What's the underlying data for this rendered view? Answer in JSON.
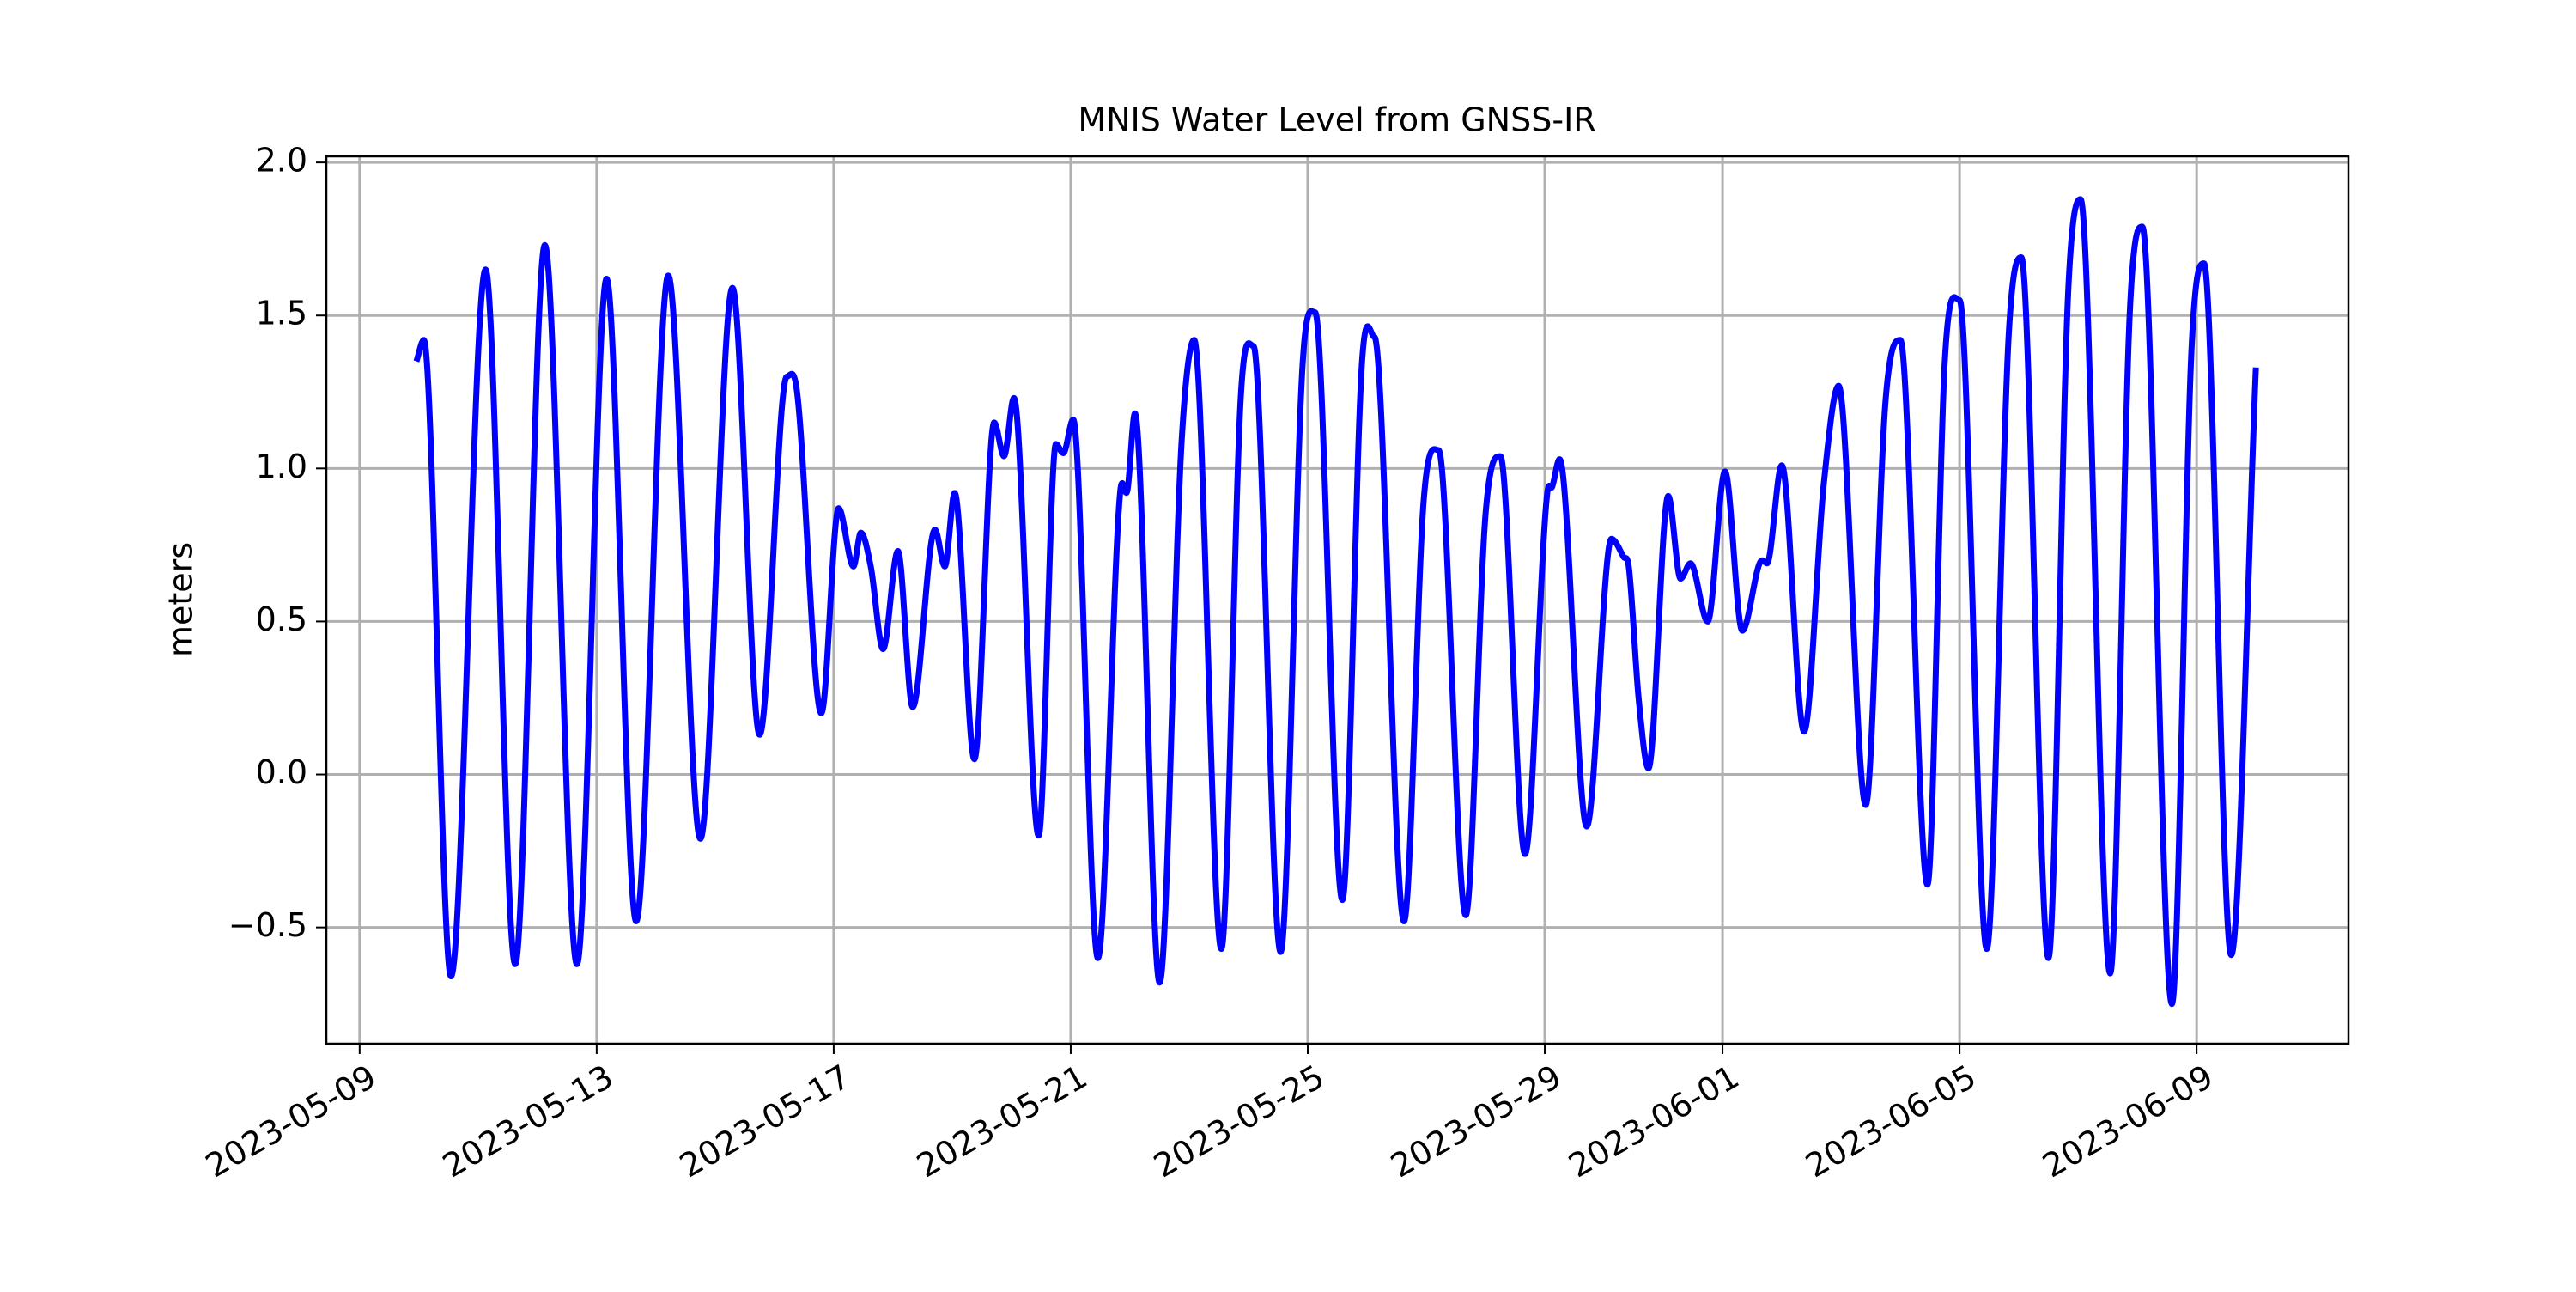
{
  "chart_data": {
    "type": "line",
    "title": "MNIS Water Level from GNSS-IR",
    "y_label": "meters",
    "grid": true,
    "xlim": [
      "2023-05-08T10:30",
      "2023-06-11T13:30"
    ],
    "xticks": [
      "2023-05-09",
      "2023-05-13",
      "2023-05-17",
      "2023-05-21",
      "2023-05-25",
      "2023-05-29",
      "2023-06-01",
      "2023-06-05",
      "2023-06-09"
    ],
    "ylim": [
      -0.88,
      2.02
    ],
    "yticks": [
      {
        "value": -0.5,
        "label": "−0.5"
      },
      {
        "value": 0,
        "label": "0.0"
      },
      0.5,
      {
        "value": 1,
        "label": "1.0"
      },
      1.5,
      {
        "value": 2,
        "label": "2.0"
      }
    ],
    "x": [
      "2023-05-09T23:00",
      "2023-05-10T02:00",
      "2023-05-10T13:00",
      "2023-05-11T03:00",
      "2023-05-11T15:00",
      "2023-05-12T03:00",
      "2023-05-12T16:00",
      "2023-05-13T04:00",
      "2023-05-13T16:00",
      "2023-05-14T05:00",
      "2023-05-14T18:00",
      "2023-05-15T07:00",
      "2023-05-15T18:00",
      "2023-05-16T05:00",
      "2023-05-16T09:00",
      "2023-05-16T19:00",
      "2023-05-17T02:00",
      "2023-05-17T08:00",
      "2023-05-17T11:00",
      "2023-05-17T15:00",
      "2023-05-17T20:00",
      "2023-05-18T02:00",
      "2023-05-18T08:00",
      "2023-05-18T17:00",
      "2023-05-18T21:00",
      "2023-05-19T01:00",
      "2023-05-19T09:00",
      "2023-05-19T17:00",
      "2023-05-19T21:00",
      "2023-05-20T01:00",
      "2023-05-20T11:00",
      "2023-05-20T18:00",
      "2023-05-20T21:00",
      "2023-05-21T01:00",
      "2023-05-21T11:00",
      "2023-05-21T20:00",
      "2023-05-21T23:00",
      "2023-05-22T02:00",
      "2023-05-22T12:00",
      "2023-05-22T21:00",
      "2023-05-23T02:00",
      "2023-05-23T13:00",
      "2023-05-23T21:00",
      "2023-05-24T02:00",
      "2023-05-24T13:00",
      "2023-05-24T22:00",
      "2023-05-25T03:00",
      "2023-05-25T14:00",
      "2023-05-25T22:00",
      "2023-05-26T03:00",
      "2023-05-26T15:00",
      "2023-05-26T23:00",
      "2023-05-27T05:00",
      "2023-05-27T16:00",
      "2023-05-28T00:00",
      "2023-05-28T06:00",
      "2023-05-28T16:00",
      "2023-05-29T01:00",
      "2023-05-29T03:00",
      "2023-05-29T06:00",
      "2023-05-29T17:00",
      "2023-05-30T03:00",
      "2023-05-30T08:00",
      "2023-05-30T10:00",
      "2023-05-30T14:00",
      "2023-05-30T18:00",
      "2023-05-31T02:00",
      "2023-05-31T07:00",
      "2023-05-31T11:00",
      "2023-05-31T18:00",
      "2023-06-01T01:00",
      "2023-06-01T08:00",
      "2023-06-01T16:00",
      "2023-06-01T18:00",
      "2023-06-02T00:00",
      "2023-06-02T09:00",
      "2023-06-02T17:00",
      "2023-06-02T23:00",
      "2023-06-03T10:00",
      "2023-06-03T18:00",
      "2023-06-04T00:00",
      "2023-06-04T11:00",
      "2023-06-04T18:00",
      "2023-06-05T00:00",
      "2023-06-05T11:00",
      "2023-06-05T20:00",
      "2023-06-06T01:00",
      "2023-06-06T12:00",
      "2023-06-06T20:00",
      "2023-06-07T01:00",
      "2023-06-07T13:00",
      "2023-06-07T21:00",
      "2023-06-08T02:00",
      "2023-06-08T14:00",
      "2023-06-08T22:00",
      "2023-06-09T03:00",
      "2023-06-09T14:00",
      "2023-06-10T00:00"
    ],
    "series": [
      {
        "color": "#0000ff",
        "values": [
          1.35,
          1.42,
          -0.66,
          1.65,
          -0.62,
          1.73,
          -0.62,
          1.62,
          -0.48,
          1.63,
          -0.21,
          1.59,
          0.13,
          1.3,
          1.26,
          0.2,
          0.87,
          0.68,
          0.79,
          0.68,
          0.41,
          0.73,
          0.22,
          0.8,
          0.68,
          0.92,
          0.05,
          1.15,
          1.04,
          1.23,
          -0.2,
          1.08,
          1.05,
          1.16,
          -0.6,
          0.92,
          0.93,
          1.18,
          -0.68,
          1.1,
          1.42,
          -0.57,
          1.25,
          1.4,
          -0.58,
          1.35,
          1.51,
          -0.41,
          1.35,
          1.43,
          -0.48,
          0.9,
          1.06,
          -0.46,
          0.85,
          1.04,
          -0.26,
          0.92,
          0.94,
          1.03,
          -0.17,
          0.77,
          0.71,
          0.68,
          0.25,
          0.02,
          0.91,
          0.64,
          0.69,
          0.5,
          0.99,
          0.47,
          0.7,
          0.69,
          1.01,
          0.14,
          0.95,
          1.27,
          -0.1,
          1.22,
          1.42,
          -0.36,
          1.35,
          1.55,
          -0.57,
          1.45,
          1.69,
          -0.6,
          1.58,
          1.88,
          -0.65,
          1.52,
          1.79,
          -0.75,
          1.4,
          1.67,
          -0.59,
          1.33
        ]
      }
    ]
  }
}
